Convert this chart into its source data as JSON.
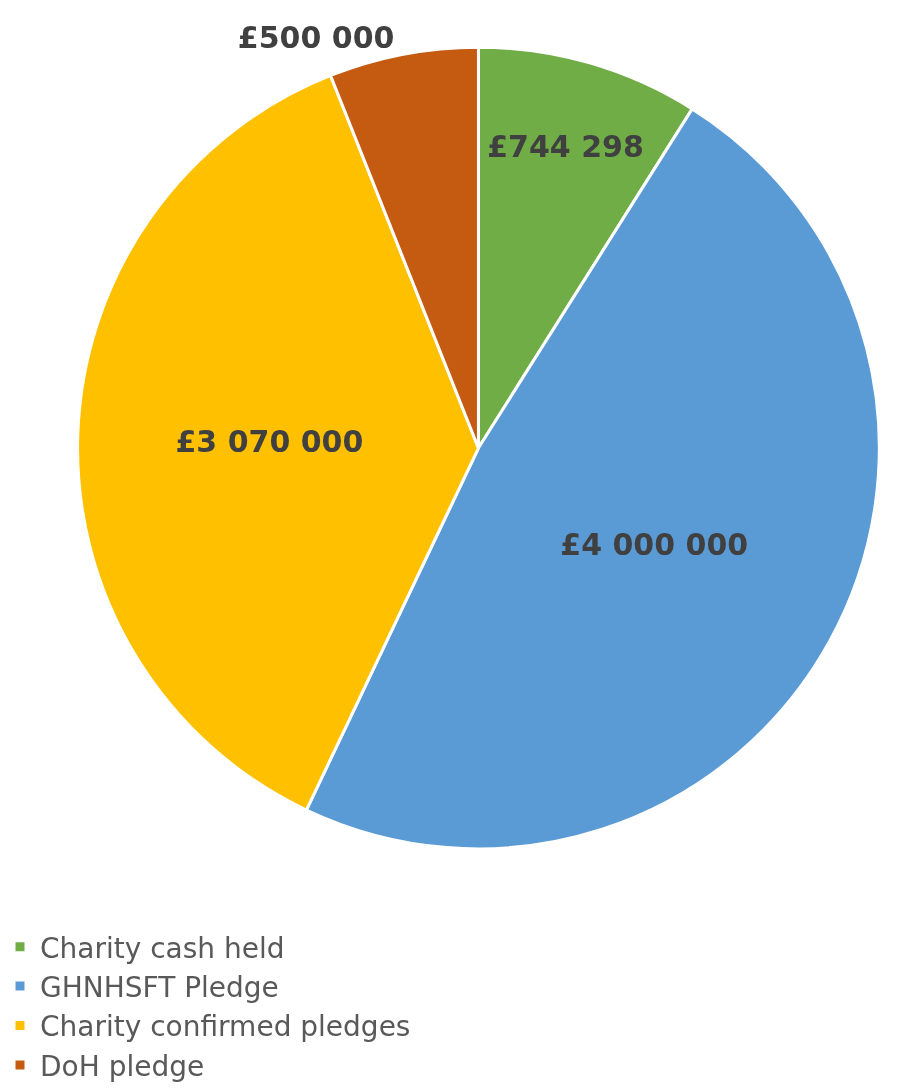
{
  "chart_data": {
    "type": "pie",
    "categories": [
      "Charity cash held",
      "GHNHSFT Pledge",
      "Charity confirmed pledges",
      "DoH pledge"
    ],
    "values": [
      744298,
      4000000,
      3070000,
      500000
    ],
    "colors": [
      "#70ad47",
      "#5b9bd5",
      "#ffc000",
      "#c55a11"
    ],
    "value_labels": [
      "£744 298",
      "£4 000 000",
      "£3 070 000",
      "£500 000"
    ],
    "legend": "bottom"
  }
}
